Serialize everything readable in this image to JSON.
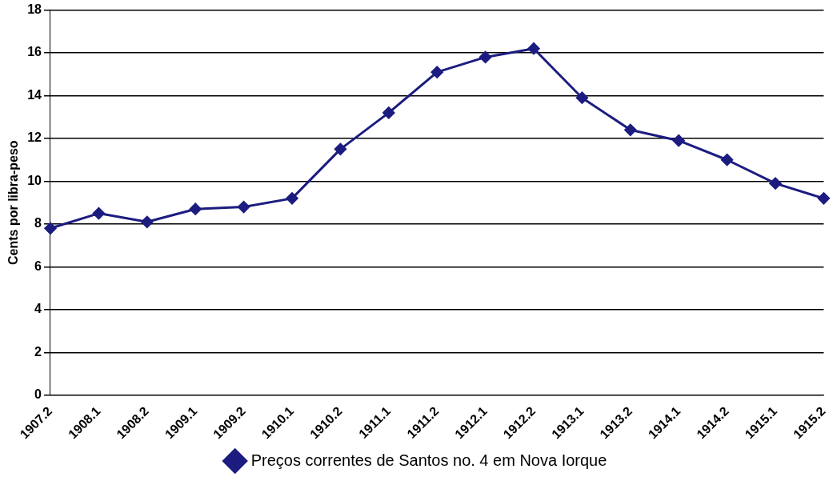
{
  "chart_data": {
    "type": "line",
    "ylabel": "Cents por libra-peso",
    "categories": [
      "1907.2",
      "1908.1",
      "1908.2",
      "1909.1",
      "1909.2",
      "1910.1",
      "1910.2",
      "1911.1",
      "1911.2",
      "1912.1",
      "1912.2",
      "1913.1",
      "1913.2",
      "1914.1",
      "1914.2",
      "1915.1",
      "1915.2"
    ],
    "series": [
      {
        "name": "Preços correntes de Santos no. 4 em Nova Iorque",
        "color": "#1c1c80",
        "values": [
          7.8,
          8.5,
          8.1,
          8.7,
          8.8,
          9.2,
          11.5,
          13.2,
          15.1,
          15.8,
          16.2,
          13.9,
          12.4,
          11.9,
          11.0,
          9.9,
          9.2
        ]
      }
    ],
    "ylim": [
      0,
      18
    ],
    "yticks": [
      0,
      2,
      4,
      6,
      8,
      10,
      12,
      14,
      16,
      18
    ],
    "grid": "y",
    "legend": "bottom",
    "marker": "diamond",
    "line_style": "solid"
  }
}
